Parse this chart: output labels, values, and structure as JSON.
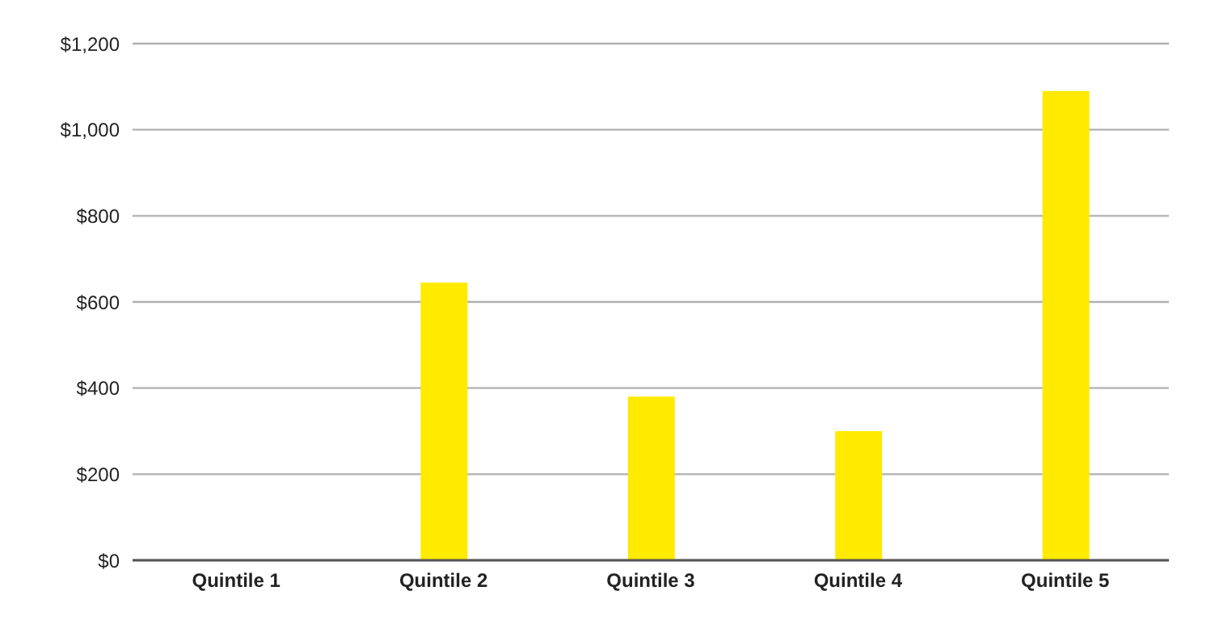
{
  "chart_data": {
    "type": "bar",
    "categories": [
      "Quintile 1",
      "Quintile 2",
      "Quintile 3",
      "Quintile 4",
      "Quintile 5"
    ],
    "values": [
      0,
      645,
      380,
      300,
      1090
    ],
    "color": "#ffea00",
    "ylim": [
      0,
      1200
    ],
    "yticks": [
      {
        "value": 0,
        "label": "$0"
      },
      {
        "value": 200,
        "label": "$200"
      },
      {
        "value": 400,
        "label": "$400"
      },
      {
        "value": 600,
        "label": "$600"
      },
      {
        "value": 800,
        "label": "$800"
      },
      {
        "value": 1000,
        "label": "$1,000"
      },
      {
        "value": 1200,
        "label": "$1,200"
      }
    ],
    "grid": "y",
    "legend": false
  }
}
